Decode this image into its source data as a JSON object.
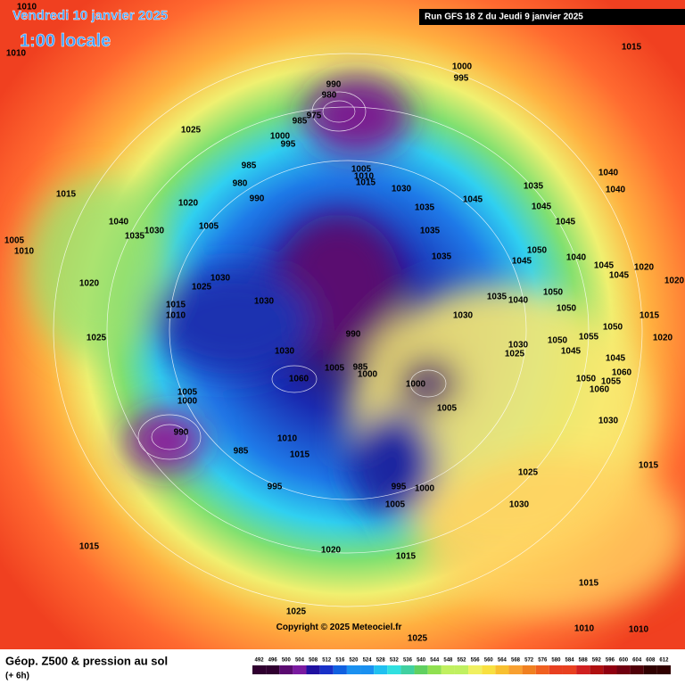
{
  "header": {
    "date": "Vendredi 10 janvier 2025",
    "time": "1:00 locale",
    "run": "Run GFS 18 Z du Jeudi 9 janvier 2025"
  },
  "copyright": "Copyright © 2025 Meteociel.fr",
  "legend": {
    "title": "Géop. Z500 & pression au sol",
    "lead": "(+ 6h)",
    "scale": [
      492,
      496,
      500,
      504,
      508,
      512,
      516,
      520,
      524,
      528,
      532,
      536,
      540,
      544,
      548,
      552,
      556,
      560,
      564,
      568,
      572,
      576,
      580,
      584,
      588,
      592,
      596,
      600,
      604,
      608,
      612
    ]
  },
  "pressure_labels": [
    1010,
    1010,
    1015,
    1000,
    995,
    990,
    980,
    975,
    985,
    1025,
    1000,
    995,
    985,
    1005,
    1010,
    1015,
    1040,
    1040,
    980,
    1030,
    1035,
    1015,
    1020,
    990,
    1045,
    1045,
    1035,
    1045,
    1040,
    1005,
    1030,
    1035,
    1035,
    1005,
    1010,
    1050,
    1045,
    1035,
    1040,
    1045,
    1020,
    1045,
    1030,
    1020,
    1025,
    1020,
    1050,
    1035,
    1040,
    1030,
    1015,
    1050,
    1010,
    1030,
    1015,
    1050,
    1025,
    1030,
    1050,
    1055,
    1020,
    1045,
    1025,
    990,
    1030,
    1045,
    985,
    1000,
    1005,
    1060,
    1060,
    1050,
    1055,
    1000,
    1060,
    1005,
    1000,
    1005,
    1030,
    990,
    1010,
    985,
    1015,
    1025,
    995,
    1000,
    995,
    1005,
    1030,
    1015,
    1015,
    1020,
    1015,
    1015,
    1025,
    1010,
    1010,
    1025
  ]
}
